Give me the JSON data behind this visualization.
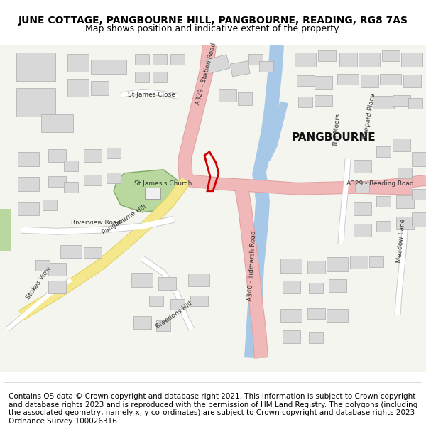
{
  "title_line1": "JUNE COTTAGE, PANGBOURNE HILL, PANGBOURNE, READING, RG8 7AS",
  "title_line2": "Map shows position and indicative extent of the property.",
  "footer": "Contains OS data © Crown copyright and database right 2021. This information is subject to Crown copyright and database rights 2023 and is reproduced with the permission of HM Land Registry. The polygons (including the associated geometry, namely x, y co-ordinates) are subject to Crown copyright and database rights 2023 Ordnance Survey 100026316.",
  "map_bg": "#f5f5f0",
  "building_color": "#d8d8d8",
  "building_edge": "#aaaaaa",
  "road_pink": "#f0b8b8",
  "road_yellow": "#f5e88c",
  "road_white": "#ffffff",
  "river_blue": "#a8c8e8",
  "green_area": "#b8d8a0",
  "plot_outline": "#cc0000",
  "label_color": "#333333",
  "title_fontsize": 10,
  "subtitle_fontsize": 9,
  "footer_fontsize": 7.5
}
